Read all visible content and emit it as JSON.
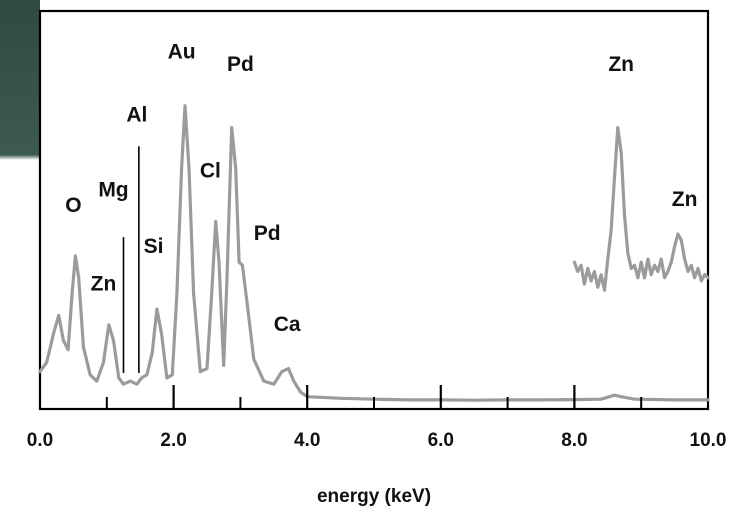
{
  "chart_data": {
    "type": "line",
    "title": "",
    "xlabel": "energy (keV)",
    "ylabel": "",
    "xlim": [
      0,
      10
    ],
    "ylim": [
      0,
      1
    ],
    "grid": false,
    "x_tick_labels": [
      "0.0",
      "2.0",
      "4.0",
      "6.0",
      "8.0",
      "10.0"
    ],
    "x_tick_values": [
      0,
      2,
      4,
      6,
      8,
      10
    ],
    "minor_ticks": [
      1,
      3,
      5,
      7,
      9
    ],
    "series": [
      {
        "points": [
          [
            0.0,
            0.1
          ],
          [
            0.1,
            0.13
          ],
          [
            0.2,
            0.22
          ],
          [
            0.28,
            0.28
          ],
          [
            0.35,
            0.2
          ],
          [
            0.42,
            0.17
          ],
          [
            0.48,
            0.35
          ],
          [
            0.53,
            0.47
          ],
          [
            0.58,
            0.4
          ],
          [
            0.65,
            0.18
          ],
          [
            0.75,
            0.09
          ],
          [
            0.85,
            0.07
          ],
          [
            0.95,
            0.13
          ],
          [
            1.03,
            0.25
          ],
          [
            1.1,
            0.2
          ],
          [
            1.18,
            0.08
          ],
          [
            1.25,
            0.06
          ],
          [
            1.35,
            0.07
          ],
          [
            1.45,
            0.06
          ],
          [
            1.52,
            0.08
          ],
          [
            1.6,
            0.09
          ],
          [
            1.68,
            0.16
          ],
          [
            1.75,
            0.3
          ],
          [
            1.82,
            0.22
          ],
          [
            1.9,
            0.08
          ],
          [
            1.98,
            0.09
          ],
          [
            2.05,
            0.35
          ],
          [
            2.12,
            0.75
          ],
          [
            2.17,
            0.95
          ],
          [
            2.23,
            0.75
          ],
          [
            2.3,
            0.35
          ],
          [
            2.4,
            0.1
          ],
          [
            2.5,
            0.11
          ],
          [
            2.57,
            0.35
          ],
          [
            2.63,
            0.58
          ],
          [
            2.68,
            0.45
          ],
          [
            2.75,
            0.12
          ],
          [
            2.8,
            0.4
          ],
          [
            2.87,
            0.88
          ],
          [
            2.93,
            0.75
          ],
          [
            2.98,
            0.45
          ],
          [
            3.03,
            0.44
          ],
          [
            3.1,
            0.32
          ],
          [
            3.2,
            0.14
          ],
          [
            3.35,
            0.07
          ],
          [
            3.5,
            0.06
          ],
          [
            3.62,
            0.1
          ],
          [
            3.72,
            0.11
          ],
          [
            3.8,
            0.07
          ],
          [
            3.9,
            0.035
          ],
          [
            4.0,
            0.02
          ],
          [
            4.5,
            0.015
          ],
          [
            5.0,
            0.012
          ],
          [
            5.5,
            0.01
          ],
          [
            6.0,
            0.01
          ],
          [
            6.5,
            0.009
          ],
          [
            7.0,
            0.01
          ],
          [
            7.5,
            0.01
          ],
          [
            8.0,
            0.011
          ],
          [
            8.4,
            0.012
          ],
          [
            8.6,
            0.025
          ],
          [
            8.7,
            0.02
          ],
          [
            8.9,
            0.012
          ],
          [
            9.5,
            0.01
          ],
          [
            10.0,
            0.01
          ]
        ]
      },
      {
        "points": [
          [
            8.0,
            0.45
          ],
          [
            8.05,
            0.42
          ],
          [
            8.1,
            0.44
          ],
          [
            8.15,
            0.38
          ],
          [
            8.2,
            0.43
          ],
          [
            8.25,
            0.39
          ],
          [
            8.3,
            0.42
          ],
          [
            8.35,
            0.37
          ],
          [
            8.4,
            0.41
          ],
          [
            8.45,
            0.36
          ],
          [
            8.5,
            0.46
          ],
          [
            8.55,
            0.55
          ],
          [
            8.6,
            0.72
          ],
          [
            8.65,
            0.88
          ],
          [
            8.7,
            0.8
          ],
          [
            8.75,
            0.6
          ],
          [
            8.8,
            0.48
          ],
          [
            8.85,
            0.43
          ],
          [
            8.9,
            0.44
          ],
          [
            8.95,
            0.4
          ],
          [
            9.0,
            0.45
          ],
          [
            9.05,
            0.4
          ],
          [
            9.1,
            0.46
          ],
          [
            9.15,
            0.41
          ],
          [
            9.2,
            0.44
          ],
          [
            9.25,
            0.42
          ],
          [
            9.3,
            0.46
          ],
          [
            9.35,
            0.4
          ],
          [
            9.4,
            0.42
          ],
          [
            9.45,
            0.45
          ],
          [
            9.5,
            0.5
          ],
          [
            9.55,
            0.54
          ],
          [
            9.6,
            0.52
          ],
          [
            9.65,
            0.46
          ],
          [
            9.7,
            0.42
          ],
          [
            9.75,
            0.44
          ],
          [
            9.8,
            0.4
          ],
          [
            9.85,
            0.43
          ],
          [
            9.9,
            0.39
          ],
          [
            9.95,
            0.41
          ],
          [
            10.0,
            0.4
          ]
        ]
      }
    ],
    "annotations": [
      {
        "text": "O",
        "x": 0.5,
        "y": 0.61
      },
      {
        "text": "Mg",
        "x": 1.1,
        "y": 0.66
      },
      {
        "text": "Al",
        "x": 1.45,
        "y": 0.9
      },
      {
        "text": "Si",
        "x": 1.7,
        "y": 0.48
      },
      {
        "text": "Zn",
        "x": 0.95,
        "y": 0.36
      },
      {
        "text": "Au",
        "x": 2.12,
        "y": 1.1
      },
      {
        "text": "Pd",
        "x": 3.0,
        "y": 1.06
      },
      {
        "text": "Cl",
        "x": 2.55,
        "y": 0.72
      },
      {
        "text": "Pd",
        "x": 3.4,
        "y": 0.52
      },
      {
        "text": "Ca",
        "x": 3.7,
        "y": 0.23
      },
      {
        "text": "Zn",
        "x": 8.7,
        "y": 1.06
      },
      {
        "text": "Zn",
        "x": 9.65,
        "y": 0.63
      }
    ],
    "markers": [
      {
        "x": 1.25,
        "y_top": 0.53
      },
      {
        "x": 1.48,
        "y_top": 0.82
      }
    ],
    "colors": {
      "line": "#9b9b9b",
      "axis": "#000000",
      "text": "#111111"
    }
  }
}
